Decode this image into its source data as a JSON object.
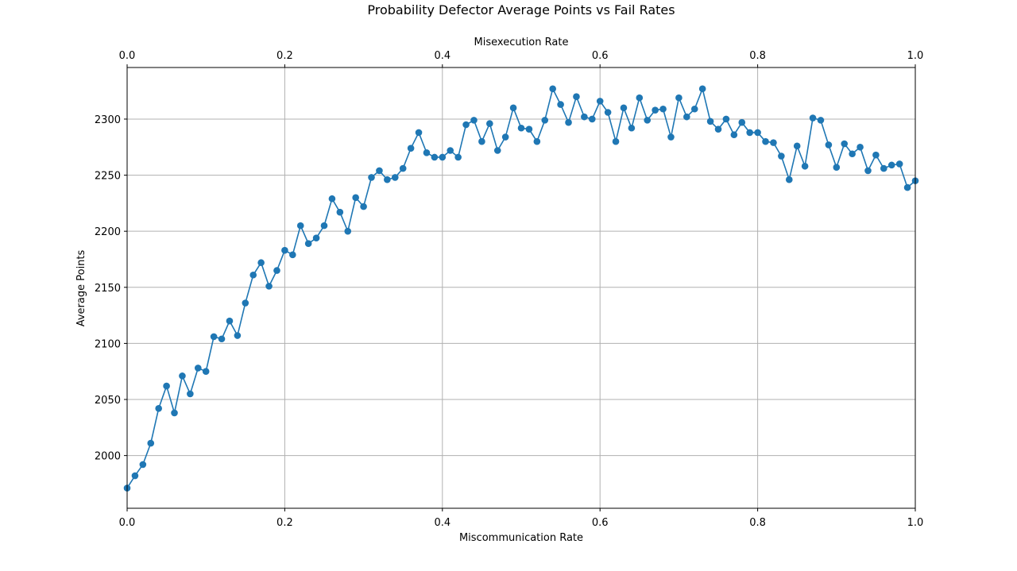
{
  "chart_data": {
    "type": "line",
    "title": "Probability Defector Average Points vs Fail Rates",
    "xlabel": "Miscommunication Rate",
    "x2label": "Misexecution Rate",
    "ylabel": "Average Points",
    "xlim": [
      0,
      1
    ],
    "ylim": [
      1953,
      2346
    ],
    "x_ticks": [
      "0.0",
      "0.2",
      "0.4",
      "0.6",
      "0.8",
      "1.0"
    ],
    "x2_ticks": [
      "0.0",
      "0.2",
      "0.4",
      "0.6",
      "0.8",
      "1.0"
    ],
    "y_ticks": [
      "2000",
      "2050",
      "2100",
      "2150",
      "2200",
      "2250",
      "2300"
    ],
    "grid": true,
    "marker": "circle",
    "line_color": "#1f77b4",
    "x_start": 0.0,
    "x_step": 0.01,
    "values": [
      1971,
      1982,
      1992,
      2011,
      2042,
      2062,
      2038,
      2071,
      2055,
      2078,
      2075,
      2106,
      2104,
      2120,
      2107,
      2136,
      2161,
      2172,
      2151,
      2165,
      2183,
      2179,
      2205,
      2189,
      2194,
      2205,
      2229,
      2217,
      2200,
      2230,
      2222,
      2248,
      2254,
      2246,
      2248,
      2256,
      2274,
      2288,
      2270,
      2266,
      2266,
      2272,
      2266,
      2295,
      2299,
      2280,
      2296,
      2272,
      2284,
      2310,
      2292,
      2291,
      2280,
      2299,
      2327,
      2313,
      2297,
      2320,
      2302,
      2300,
      2316,
      2306,
      2280,
      2310,
      2292,
      2319,
      2299,
      2308,
      2309,
      2284,
      2319,
      2302,
      2309,
      2327,
      2298,
      2291,
      2300,
      2286,
      2297,
      2288,
      2288,
      2280,
      2279,
      2267,
      2246,
      2276,
      2258,
      2301,
      2299,
      2277,
      2257,
      2278,
      2269,
      2275,
      2254,
      2268,
      2256,
      2259,
      2260,
      2239,
      2245
    ]
  }
}
